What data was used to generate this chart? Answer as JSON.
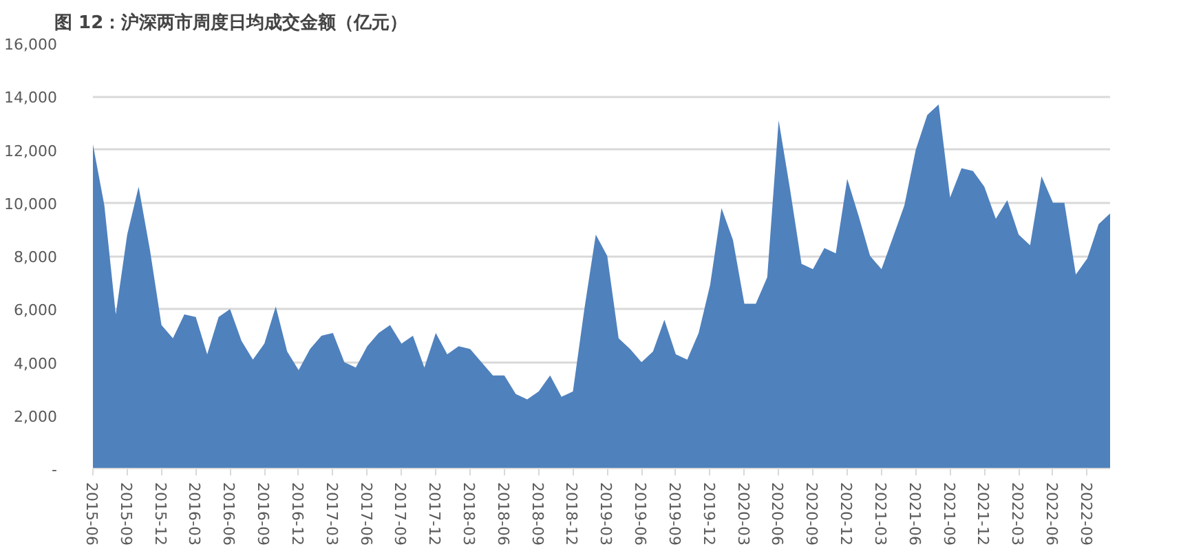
{
  "chart_data": {
    "type": "area",
    "title": "图 12：沪深两市周度日均成交金额（亿元）",
    "categories": [
      "2015-06",
      null,
      null,
      "2015-09",
      null,
      null,
      "2015-12",
      null,
      null,
      "2016-03",
      null,
      null,
      "2016-06",
      null,
      null,
      "2016-09",
      null,
      null,
      "2016-12",
      null,
      null,
      "2017-03",
      null,
      null,
      "2017-06",
      null,
      null,
      "2017-09",
      null,
      null,
      "2017-12",
      null,
      null,
      "2018-03",
      null,
      null,
      "2018-06",
      null,
      null,
      "2018-09",
      null,
      null,
      "2018-12",
      null,
      null,
      "2019-03",
      null,
      null,
      "2019-06",
      null,
      null,
      "2019-09",
      null,
      null,
      "2019-12",
      null,
      null,
      "2020-03",
      null,
      null,
      "2020-06",
      null,
      null,
      "2020-09",
      null,
      null,
      "2020-12",
      null,
      null,
      "2021-03",
      null,
      null,
      "2021-06",
      null,
      null,
      "2021-09",
      null,
      null,
      "2021-12",
      null,
      null,
      "2022-03",
      null,
      null,
      "2022-06",
      null,
      null,
      "2022-09",
      null,
      null
    ],
    "series": [
      {
        "color": "#4f81bd",
        "values": [
          12200,
          9900,
          5800,
          8800,
          10600,
          8200,
          5400,
          4900,
          5800,
          5700,
          4300,
          5700,
          6000,
          4800,
          4100,
          4700,
          6100,
          4400,
          3700,
          4500,
          5000,
          5100,
          4000,
          3800,
          4600,
          5100,
          5400,
          4700,
          5000,
          3800,
          5100,
          4300,
          4600,
          4500,
          4000,
          3500,
          3500,
          2800,
          2600,
          2900,
          3500,
          2700,
          2900,
          6000,
          8800,
          8000,
          4900,
          4500,
          4000,
          4400,
          5600,
          4300,
          4100,
          5100,
          6900,
          9800,
          8600,
          6200,
          6200,
          7200,
          13100,
          10500,
          7700,
          7500,
          8300,
          8100,
          10900,
          9500,
          8000,
          7500,
          8700,
          9900,
          12000,
          13300,
          13700,
          10200,
          11300,
          11200,
          10600,
          9400,
          10100,
          8800,
          8400,
          11000,
          10000,
          10000,
          7300,
          7900,
          9200,
          9600
        ]
      }
    ],
    "ylim": [
      0,
      16000
    ],
    "yticks": [
      {
        "value": 0,
        "label": "-"
      },
      {
        "value": 2000,
        "label": "2,000"
      },
      {
        "value": 4000,
        "label": "4,000"
      },
      {
        "value": 6000,
        "label": "6,000"
      },
      {
        "value": 8000,
        "label": "8,000"
      },
      {
        "value": 10000,
        "label": "10,000"
      },
      {
        "value": 12000,
        "label": "12,000"
      },
      {
        "value": 14000,
        "label": "14,000"
      },
      {
        "value": 16000,
        "label": "16,000"
      }
    ],
    "grid": "y"
  }
}
